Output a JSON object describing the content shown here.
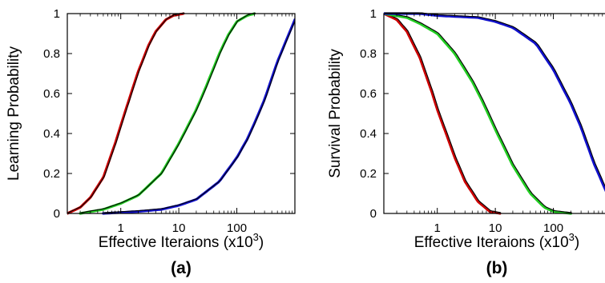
{
  "chart_data": [
    {
      "type": "line",
      "panel_label": "(a)",
      "xlabel": "Effective Iteraions (x10",
      "xlabel_exponent": "3",
      "xlabel_suffix": ")",
      "ylabel": "Learning Probability",
      "x_scale": "log",
      "xlim": [
        0.12,
        1000
      ],
      "ylim": [
        0,
        1
      ],
      "x_ticks": [
        1,
        10,
        100
      ],
      "x_tick_labels": [
        "1",
        "10",
        "100"
      ],
      "y_ticks": [
        0,
        0.2,
        0.4,
        0.6,
        0.8,
        1
      ],
      "y_tick_labels": [
        "0",
        "0.2",
        "0.4",
        "0.6",
        "0.8",
        "1"
      ],
      "grid": false,
      "series": [
        {
          "color": "#cc0000",
          "fit_color": "#000000",
          "x": [
            0.12,
            0.2,
            0.3,
            0.5,
            0.8,
            1,
            1.5,
            2,
            3,
            4,
            6,
            8,
            12
          ],
          "y": [
            0.0,
            0.03,
            0.08,
            0.18,
            0.35,
            0.44,
            0.6,
            0.71,
            0.84,
            0.91,
            0.97,
            0.99,
            1.0
          ]
        },
        {
          "color": "#22cc22",
          "fit_color": "#000000",
          "x": [
            0.2,
            0.5,
            1,
            2,
            5,
            10,
            20,
            30,
            50,
            70,
            100,
            150,
            200
          ],
          "y": [
            0.0,
            0.02,
            0.05,
            0.09,
            0.2,
            0.35,
            0.52,
            0.64,
            0.8,
            0.89,
            0.96,
            0.99,
            1.0
          ]
        },
        {
          "color": "#1111cc",
          "fit_color": "#000000",
          "x": [
            0.5,
            1,
            2,
            5,
            10,
            20,
            50,
            100,
            150,
            200,
            300,
            500,
            1000
          ],
          "y": [
            0.0,
            0.005,
            0.01,
            0.02,
            0.04,
            0.07,
            0.16,
            0.28,
            0.37,
            0.45,
            0.57,
            0.76,
            0.97
          ]
        }
      ]
    },
    {
      "type": "line",
      "panel_label": "(b)",
      "xlabel": "Effective Iteraions (x10",
      "xlabel_exponent": "3",
      "xlabel_suffix": ")",
      "ylabel": "Survival Probability",
      "x_scale": "log",
      "xlim": [
        0.12,
        1000
      ],
      "ylim": [
        0,
        1
      ],
      "x_ticks": [
        1,
        10,
        100
      ],
      "x_tick_labels": [
        "1",
        "10",
        "100"
      ],
      "y_ticks": [
        0,
        0.2,
        0.4,
        0.6,
        0.8,
        1
      ],
      "y_tick_labels": [
        "0",
        "0.2",
        "0.4",
        "0.6",
        "0.8",
        "1"
      ],
      "grid": false,
      "series": [
        {
          "color": "#cc0000",
          "fit_color": "#000000",
          "x": [
            0.12,
            0.2,
            0.3,
            0.5,
            0.8,
            1,
            1.5,
            2,
            3,
            5,
            8,
            12
          ],
          "y": [
            1.0,
            0.97,
            0.91,
            0.78,
            0.61,
            0.52,
            0.38,
            0.28,
            0.16,
            0.06,
            0.01,
            0.0
          ]
        },
        {
          "color": "#22cc22",
          "fit_color": "#000000",
          "x": [
            0.12,
            0.3,
            0.5,
            1,
            2,
            4,
            6,
            10,
            20,
            40,
            70,
            100,
            200
          ],
          "y": [
            1.0,
            0.98,
            0.95,
            0.9,
            0.8,
            0.66,
            0.56,
            0.42,
            0.24,
            0.1,
            0.03,
            0.01,
            0.0
          ]
        },
        {
          "color": "#1111cc",
          "fit_color": "#000000",
          "x": [
            0.12,
            0.5,
            1,
            5,
            10,
            20,
            50,
            100,
            200,
            300,
            500,
            1000
          ],
          "y": [
            1.0,
            1.0,
            0.99,
            0.98,
            0.96,
            0.93,
            0.85,
            0.72,
            0.55,
            0.43,
            0.25,
            0.05
          ]
        }
      ]
    }
  ]
}
